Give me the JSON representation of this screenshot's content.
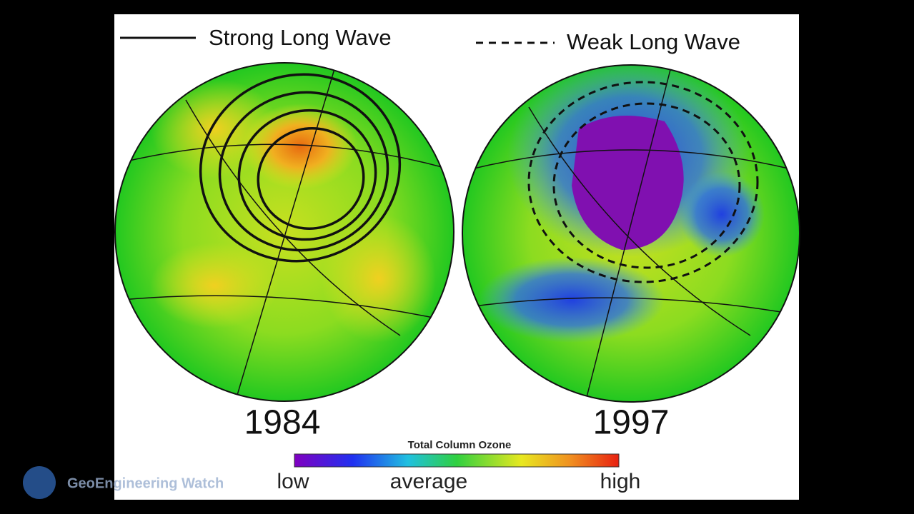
{
  "legend": {
    "items": [
      {
        "label": "Strong Long Wave"
      },
      {
        "label": "Weak Long Wave"
      }
    ]
  },
  "panels": [
    {
      "year": "1984"
    },
    {
      "year": "1997"
    }
  ],
  "colorbar": {
    "title": "Total Column Ozone",
    "labels": [
      "low",
      "average",
      "high"
    ]
  },
  "watermark": "GeoEngineering Watch"
}
